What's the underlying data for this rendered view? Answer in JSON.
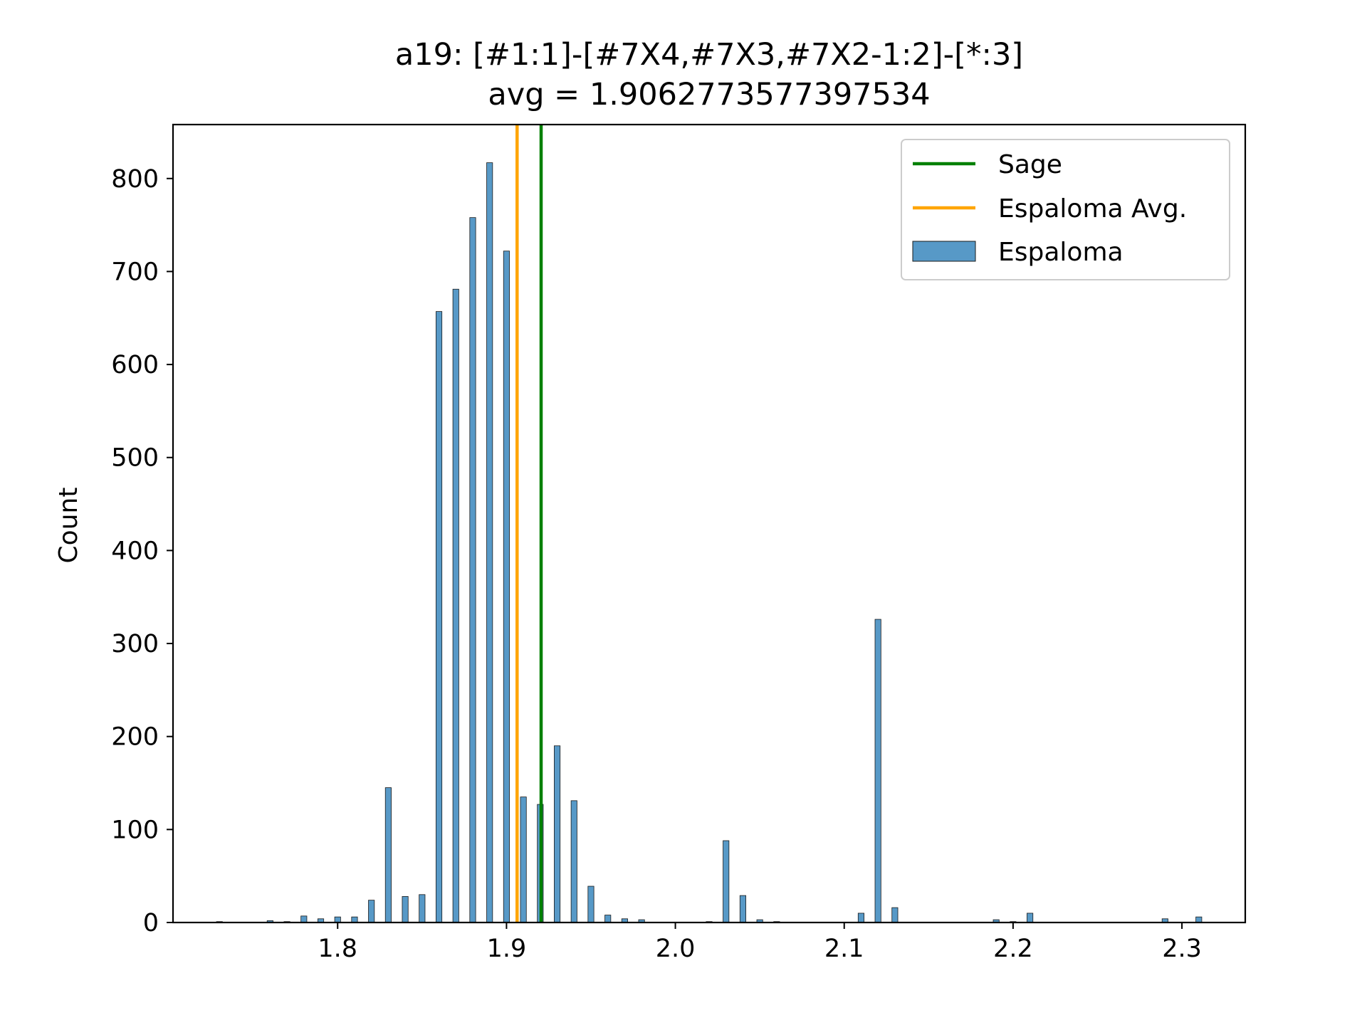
{
  "chart_data": {
    "type": "bar",
    "title": "a19: [#1:1]-[#7X4,#7X3,#7X2-1:2]-[*:3]",
    "subtitle": "avg = 1.9062773577397534",
    "xlabel": "",
    "ylabel": "Count",
    "xlim": [
      1.7025,
      2.3375
    ],
    "ylim": [
      0,
      858
    ],
    "x_ticks": [
      1.8,
      1.9,
      2.0,
      2.1,
      2.2,
      2.3
    ],
    "x_tick_labels": [
      "1.8",
      "1.9",
      "2.0",
      "2.1",
      "2.2",
      "2.3"
    ],
    "y_ticks": [
      0,
      100,
      200,
      300,
      400,
      500,
      600,
      700,
      800
    ],
    "y_tick_labels": [
      "0",
      "100",
      "200",
      "300",
      "400",
      "500",
      "600",
      "700",
      "800"
    ],
    "bar_width": 0.0035,
    "series": [
      {
        "name": "Espaloma",
        "color": "#5799c7",
        "x": [
          1.73,
          1.76,
          1.77,
          1.78,
          1.79,
          1.8,
          1.81,
          1.82,
          1.83,
          1.84,
          1.85,
          1.86,
          1.87,
          1.88,
          1.89,
          1.9,
          1.91,
          1.92,
          1.93,
          1.94,
          1.95,
          1.96,
          1.97,
          1.98,
          2.02,
          2.03,
          2.04,
          2.05,
          2.06,
          2.11,
          2.12,
          2.13,
          2.19,
          2.2,
          2.21,
          2.29,
          2.31
        ],
        "values": [
          1,
          2,
          1,
          7,
          4,
          6,
          6,
          24,
          145,
          28,
          30,
          657,
          681,
          758,
          817,
          722,
          135,
          127,
          190,
          131,
          39,
          8,
          4,
          3,
          1,
          88,
          29,
          3,
          1,
          10,
          326,
          16,
          3,
          1,
          10,
          4,
          6
        ]
      }
    ],
    "vlines": [
      {
        "name": "Sage",
        "x": 1.9205,
        "color": "#008000"
      },
      {
        "name": "Espaloma Avg.",
        "x": 1.9062773577397534,
        "color": "#ffa500"
      }
    ],
    "legend": {
      "placement": "upper-right",
      "entries": [
        {
          "label": "Sage",
          "kind": "line",
          "color": "#008000"
        },
        {
          "label": "Espaloma Avg.",
          "kind": "line",
          "color": "#ffa500"
        },
        {
          "label": "Espaloma",
          "kind": "patch",
          "color": "#5799c7"
        }
      ]
    },
    "grid": false
  }
}
